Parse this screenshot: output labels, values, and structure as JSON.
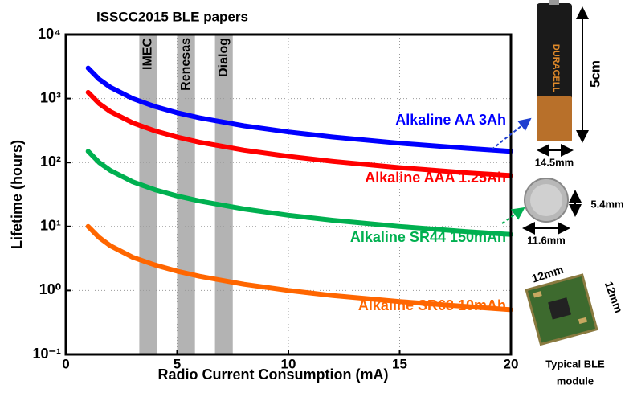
{
  "chart_data": {
    "type": "line",
    "title": "ISSCC2015 BLE papers",
    "x_label": "Radio Current Consumption (mA)",
    "y_label": "Lifetime (hours)",
    "log_y": true,
    "grid": true,
    "xlim": [
      0,
      20
    ],
    "xticks": [
      0,
      5,
      10,
      15,
      20
    ],
    "ylim": [
      0.1,
      10000
    ],
    "yticks": [
      {
        "value": 0.1,
        "label": "10⁻¹"
      },
      {
        "value": 1,
        "label": "10⁰"
      },
      {
        "value": 10,
        "label": "10¹"
      },
      {
        "value": 100,
        "label": "10²"
      },
      {
        "value": 1000,
        "label": "10³"
      },
      {
        "value": 10000,
        "label": "10⁴"
      }
    ],
    "x": [
      1,
      1.5,
      2,
      3,
      4,
      5,
      6,
      8,
      10,
      12,
      15,
      18,
      20
    ],
    "series": [
      {
        "name": "Alkaline AA 3Ah",
        "color": "#0000ff",
        "values": [
          3000,
          2000,
          1500,
          1000,
          750,
          600,
          500,
          375,
          300,
          250,
          200,
          167,
          150
        ]
      },
      {
        "name": "Alkaline AAA 1.25Ah",
        "color": "#ff0000",
        "values": [
          1250,
          833,
          625,
          417,
          313,
          250,
          208,
          156,
          125,
          104,
          83,
          69,
          62.5
        ]
      },
      {
        "name": "Alkaline SR44 150mAh",
        "color": "#00b050",
        "values": [
          150,
          100,
          75,
          50,
          37.5,
          30,
          25,
          18.8,
          15,
          12.5,
          10,
          8.3,
          7.5
        ]
      },
      {
        "name": "Alkaline SR63 10mAh",
        "color": "#ff6600",
        "values": [
          10,
          6.7,
          5,
          3.3,
          2.5,
          2,
          1.67,
          1.25,
          1,
          0.83,
          0.67,
          0.56,
          0.5
        ]
      }
    ],
    "bands": [
      {
        "label": "IMEC",
        "x0": 3.3,
        "x1": 4.1
      },
      {
        "label": "Renesas",
        "x0": 5.0,
        "x1": 5.8
      },
      {
        "label": "Dialog",
        "x0": 6.7,
        "x1": 7.5
      }
    ],
    "side_labels": {
      "aa_height": "5cm",
      "aa_width": "14.5mm",
      "coin_height": "5.4mm",
      "coin_width": "11.6mm",
      "module_width": "12mm",
      "module_height": "12mm",
      "module_caption": [
        "Typical BLE",
        "module"
      ]
    }
  }
}
